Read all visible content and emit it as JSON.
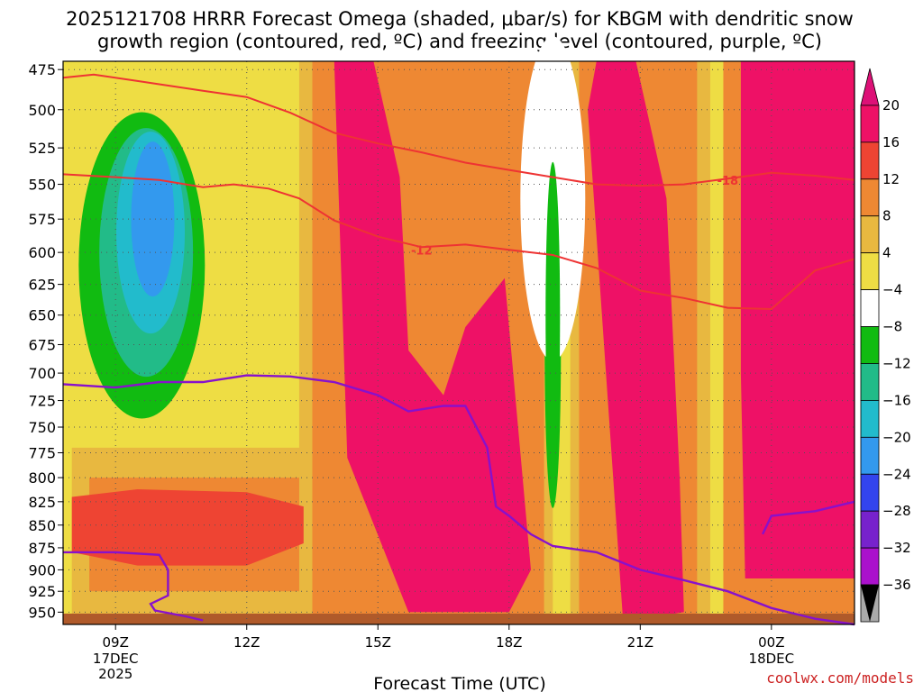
{
  "title_line1": "2025121708 HRRR Forecast Omega (shaded, μbar/s) for KBGM with dendritic snow",
  "title_line2": "growth region (contoured, red, ºC) and freezing level (contoured, purple, ºC)",
  "credit": "coolwx.com/models",
  "chart_data": {
    "type": "heatmap",
    "title": "2025121708 HRRR Forecast Omega (shaded, μbar/s) for KBGM with dendritic snow growth region (contoured, red, ºC) and freezing level (contoured, purple, ºC)",
    "xlabel": "Forecast Time (UTC)",
    "ylabel": "",
    "x_range_hours_utc": [
      7.8,
      25.9
    ],
    "y_range_mb": [
      470,
      965
    ],
    "y_scale": "log-pressure (inverted)",
    "grid": true,
    "y_ticks": [
      475,
      500,
      525,
      550,
      575,
      600,
      625,
      650,
      675,
      700,
      725,
      750,
      775,
      800,
      825,
      850,
      875,
      900,
      925,
      950
    ],
    "x_ticks": [
      {
        "hour": 9,
        "label": "09Z",
        "sub1": "17DEC",
        "sub2": "2025"
      },
      {
        "hour": 12,
        "label": "12Z",
        "sub1": "",
        "sub2": ""
      },
      {
        "hour": 15,
        "label": "15Z",
        "sub1": "",
        "sub2": ""
      },
      {
        "hour": 18,
        "label": "18Z",
        "sub1": "",
        "sub2": ""
      },
      {
        "hour": 21,
        "label": "21Z",
        "sub1": "",
        "sub2": ""
      },
      {
        "hour": 24,
        "label": "00Z",
        "sub1": "18DEC",
        "sub2": ""
      }
    ],
    "colorbar": {
      "levels": [
        "20",
        "16",
        "12",
        "8",
        "4",
        "−4",
        "−8",
        "−12",
        "−16",
        "−20",
        "−24",
        "−28",
        "−32",
        "−36"
      ],
      "colors": [
        "#ee1166",
        "#ee4433",
        "#ee8833",
        "#e8b840",
        "#eedd44",
        "#ffffff",
        "#11bb11",
        "#22bb88",
        "#22bbcc",
        "#3399ee",
        "#3344ee",
        "#7722cc",
        "#aa11cc",
        "#aaaaaa"
      ],
      "top_arrow_color": "#dd1177",
      "bottom_arrow_color": "#000000"
    },
    "omega_blobs": [
      {
        "name": "morning-uplift-column",
        "level": -24,
        "color": "#3344ee",
        "hours": [
          9.2,
          9.6,
          9.9,
          10.0,
          9.9,
          9.6,
          9.2
        ],
        "mb": [
          625,
          600,
          550,
          525,
          550,
          600,
          625
        ]
      },
      {
        "name": "low-level-subsidence",
        "level": 16,
        "color": "#ee4433",
        "hours": [
          8.0,
          9.5,
          12.0,
          13.3,
          13.3,
          12.0,
          9.5,
          8.0
        ],
        "mb": [
          820,
          812,
          815,
          830,
          870,
          895,
          895,
          880
        ]
      },
      {
        "name": "midday-subsidence",
        "level": 20,
        "color": "#ee1166",
        "hours": [
          13.7,
          14.9,
          15.5,
          15.7,
          16.5,
          17.0,
          17.9,
          18.5,
          18.0,
          15.7,
          14.3,
          14.0
        ],
        "mb": [
          470,
          470,
          545,
          680,
          720,
          660,
          620,
          900,
          950,
          950,
          780,
          470
        ]
      },
      {
        "name": "afternoon-subsidence",
        "level": 20,
        "color": "#ee1166",
        "hours": [
          20.0,
          20.9,
          21.6,
          21.9,
          22.0,
          21.4,
          20.6,
          19.8
        ],
        "mb": [
          470,
          470,
          560,
          800,
          950,
          955,
          955,
          500
        ]
      },
      {
        "name": "evening-subsidence",
        "level": 20,
        "color": "#ee1166",
        "hours": [
          23.3,
          25.9,
          25.9,
          23.4,
          23.3
        ],
        "mb": [
          470,
          470,
          910,
          910,
          700
        ]
      }
    ],
    "dgz_contours": [
      {
        "label": "-18",
        "color": "#ee3333",
        "hours": [
          7.8,
          8.5,
          9.5,
          11.0,
          12.0,
          13.0,
          14.0,
          15.0,
          16.0,
          17.0,
          18.0,
          19.0,
          20.0,
          21.0,
          22.0,
          23.0,
          24.0,
          25.0,
          25.9
        ],
        "mb": [
          480,
          478,
          482,
          488,
          492,
          502,
          515,
          522,
          528,
          535,
          540,
          545,
          550,
          551,
          550,
          546,
          542,
          544,
          547
        ]
      },
      {
        "label": "-12",
        "color": "#ee3333",
        "hours": [
          7.8,
          9.0,
          10.0,
          11.0,
          11.7,
          12.5,
          13.2,
          14.0,
          15.0,
          16.0,
          17.0,
          18.0,
          19.0,
          20.0,
          21.0,
          22.0,
          23.0,
          24.0,
          25.0,
          25.9
        ],
        "mb": [
          543,
          545,
          547,
          552,
          550,
          553,
          560,
          576,
          588,
          596,
          594,
          598,
          602,
          612,
          630,
          636,
          644,
          645,
          614,
          605
        ]
      }
    ],
    "freezing_level": {
      "color": "#8811cc",
      "series": [
        {
          "name": "upper",
          "hours": [
            7.8,
            9.0,
            10.0,
            11.0,
            12.0,
            13.0,
            14.0,
            15.0,
            15.7,
            16.5,
            17.0,
            17.5,
            17.7,
            18.0,
            18.5,
            19.0,
            20.0,
            21.0,
            22.0,
            23.0,
            24.0,
            25.0,
            25.9
          ],
          "mb": [
            710,
            713,
            708,
            708,
            702,
            703,
            708,
            720,
            735,
            730,
            730,
            770,
            830,
            840,
            860,
            873,
            880,
            900,
            912,
            925,
            945,
            958,
            965
          ]
        },
        {
          "name": "late-branch",
          "hours": [
            23.8,
            24.0,
            25.0,
            25.9
          ],
          "mb": [
            860,
            840,
            835,
            825
          ]
        },
        {
          "name": "lower",
          "hours": [
            7.8,
            9.0,
            10.0,
            10.2,
            10.2,
            9.8,
            9.9,
            10.6,
            11.0
          ],
          "mb": [
            880,
            880,
            883,
            900,
            930,
            940,
            948,
            955,
            960
          ]
        }
      ]
    },
    "contour_labels": [
      {
        "text": "-18",
        "hour": 23.0,
        "mb": 547
      },
      {
        "text": "-12",
        "hour": 16.0,
        "mb": 598
      }
    ],
    "ground_color": "#b05a2a"
  }
}
